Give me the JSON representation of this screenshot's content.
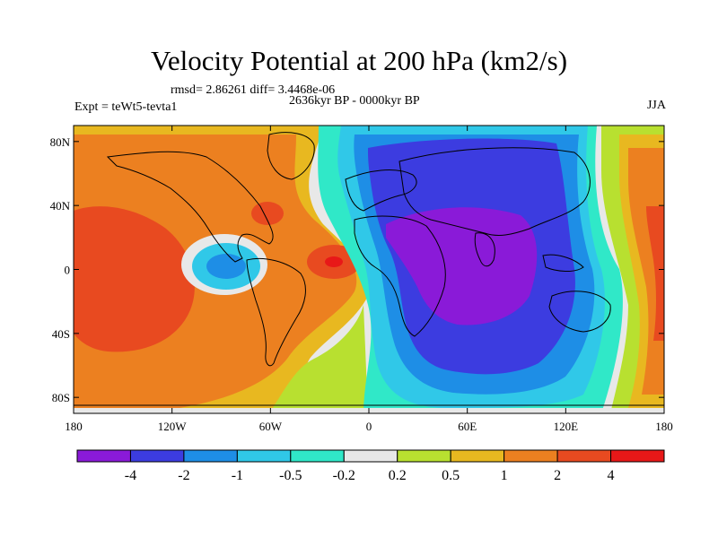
{
  "title": "Velocity Potential at 200 hPa (km2/s)",
  "stats_line": "rmsd= 2.86261  diff= 3.4468e-06",
  "left_label": "Expt = teWt5-tevta1",
  "center_label": "2636kyr BP - 0000kyr BP",
  "right_label": "JJA",
  "x_ticks": [
    "180",
    "120W",
    "60W",
    "0",
    "60E",
    "120E",
    "180"
  ],
  "y_ticks": [
    "80N",
    "40N",
    "0",
    "40S",
    "80S"
  ],
  "colorbar": {
    "labels": [
      "-4",
      "-2",
      "-1",
      "-0.5",
      "-0.2",
      "0.2",
      "0.5",
      "1",
      "2",
      "4"
    ],
    "colors": [
      "#8a1ad8",
      "#3c3ce0",
      "#1e8ee6",
      "#30c8e8",
      "#30e8c8",
      "#e8e8e8",
      "#b8e030",
      "#e8b820",
      "#ec8020",
      "#e84a20",
      "#e81818"
    ]
  },
  "map_colors": {
    "purple": "#8a1ad8",
    "blue": "#3c3ce0",
    "midblue": "#1e8ee6",
    "lightblue": "#30c8e8",
    "cyan": "#30e8c8",
    "gray": "#e8e8e8",
    "yellowgreen": "#b8e030",
    "yelloworange": "#e8b820",
    "orange": "#ec8020",
    "redorange": "#e84a20",
    "red": "#e81818"
  }
}
